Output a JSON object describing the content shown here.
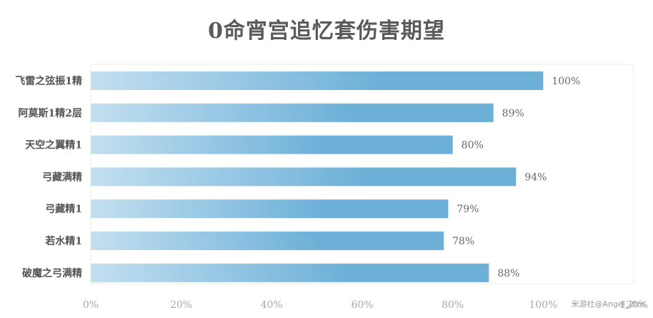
{
  "chart_data": {
    "type": "bar",
    "orientation": "horizontal",
    "title": "0命宵宫追忆套伤害期望",
    "categories": [
      "飞雷之弦振1精",
      "阿莫斯1精2层",
      "天空之翼精1",
      "弓藏满精",
      "弓藏精1",
      "若水精1",
      "破魔之弓满精"
    ],
    "values": [
      100,
      89,
      80,
      94,
      79,
      78,
      88
    ],
    "value_labels": [
      "100%",
      "89%",
      "80%",
      "94%",
      "79%",
      "78%",
      "88%"
    ],
    "xlim": [
      0,
      120
    ],
    "x_ticks": [
      "0%",
      "20%",
      "40%",
      "60%",
      "80%",
      "100%",
      "120%"
    ],
    "xlabel": "",
    "ylabel": "",
    "grid": false,
    "bar_gradient": [
      "#c3dff0",
      "#6cb0d8"
    ],
    "watermark": "米游社@Angel_2tos"
  }
}
